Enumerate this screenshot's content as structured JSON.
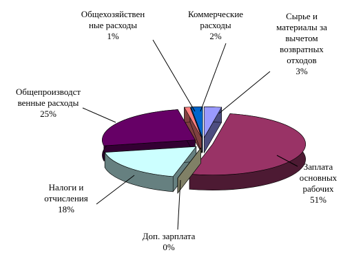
{
  "chart_data": {
    "type": "pie3d",
    "categories": [
      "Сырье и\nматериалы за\nвычетом\nвозвратных\nотходов",
      "Заплата\nосновных\nрабочих",
      "Доп. зарплата",
      "Налоги и\nотчисления",
      "Общепроизводст\nвенные расходы",
      "Общехозяйствен\nные расходы",
      "Коммерческие\nрасходы"
    ],
    "values": [
      3,
      51,
      0,
      18,
      25,
      1,
      2
    ],
    "value_labels": [
      "3%",
      "51%",
      "0%",
      "18%",
      "25%",
      "1%",
      "2%"
    ],
    "colors": [
      "#9999ff",
      "#993366",
      "#ffffcc",
      "#ccffff",
      "#660066",
      "#ff8080",
      "#0066cc"
    ]
  }
}
